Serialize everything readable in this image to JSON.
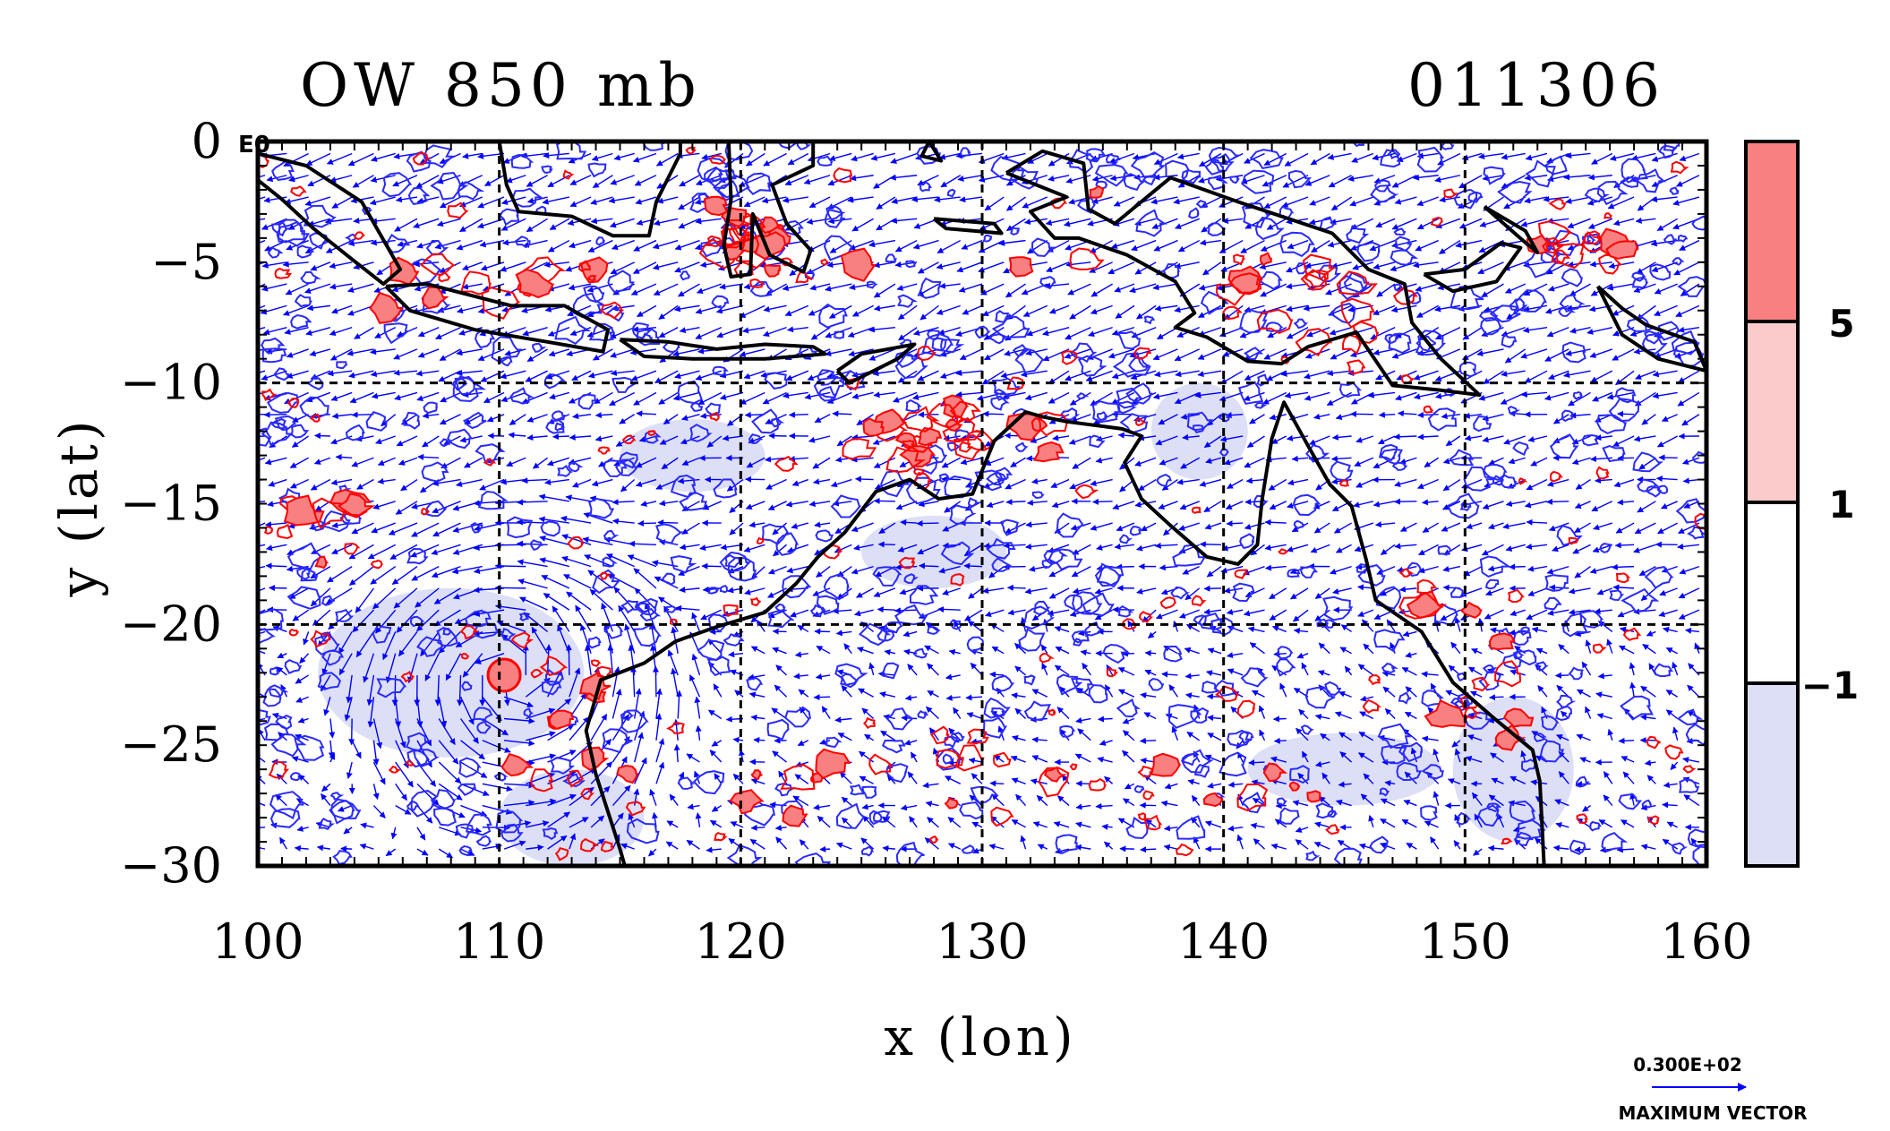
{
  "chart_data": {
    "type": "map",
    "title": "OW 850 mb",
    "timestamp": "011306",
    "xlabel": "x (lon)",
    "ylabel": "y (lat)",
    "x_range": [
      100,
      160
    ],
    "y_range": [
      -30,
      0
    ],
    "x_ticks": [
      "100",
      "110",
      "120",
      "130",
      "140",
      "150",
      "160"
    ],
    "y_ticks": [
      "0",
      "−5",
      "−10",
      "−15",
      "−20",
      "−25",
      "−30"
    ],
    "y_top_suffix": "E0",
    "grid": "dashed 10-degree lines",
    "colorbar": {
      "labels": [
        "5",
        "1",
        "−1"
      ],
      "colors": [
        "#f88080",
        "#fbcaca",
        "#ffffff",
        "#dcdff5"
      ]
    },
    "vector_key": {
      "value": "0.300E+02",
      "label": "MAXIMUM VECTOR"
    },
    "colors": {
      "vectors": "#0000ff",
      "positive_contours": "#ff0000",
      "negative_contours": "#2a2aff",
      "coastline": "#000000"
    }
  }
}
